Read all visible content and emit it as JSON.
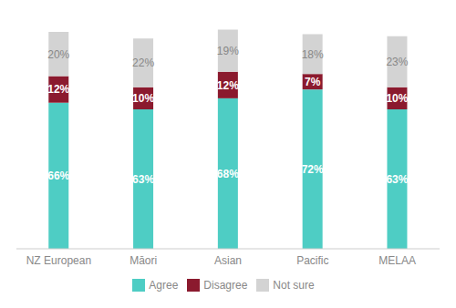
{
  "chart_data": {
    "type": "bar",
    "stacked": true,
    "categories": [
      "NZ European",
      "Māori",
      "Asian",
      "Pacific",
      "MELAA"
    ],
    "series": [
      {
        "name": "Agree",
        "color": "#4ECDC4",
        "values": [
          66,
          63,
          68,
          72,
          63
        ],
        "value_labels": [
          "66%",
          "63%",
          "68%",
          "72%",
          "63%"
        ]
      },
      {
        "name": "Disagree",
        "color": "#8B1A2E",
        "values": [
          12,
          10,
          12,
          7,
          10
        ],
        "value_labels": [
          "12%",
          "10%",
          "12%",
          "7%",
          "10%"
        ]
      },
      {
        "name": "Not sure",
        "color": "#D3D3D3",
        "values": [
          20,
          22,
          19,
          18,
          23
        ],
        "value_labels": [
          "20%",
          "22%",
          "19%",
          "18%",
          "23%"
        ]
      }
    ],
    "ylim": [
      0,
      105
    ],
    "data_labels": true,
    "tick_labels": "x",
    "grid": false,
    "legend": "bottom"
  }
}
